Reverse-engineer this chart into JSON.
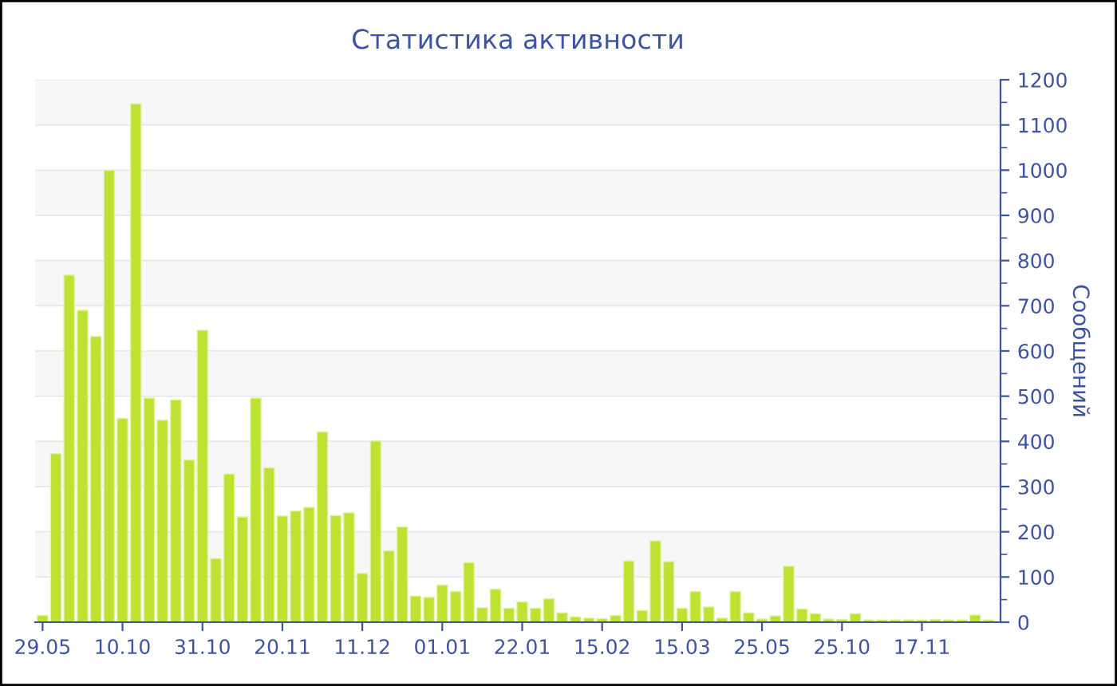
{
  "chart_data": {
    "type": "bar",
    "title": "Статистика активности",
    "ylabel": "Сообщений",
    "categories": [
      "29.05",
      null,
      null,
      null,
      null,
      null,
      "10.10",
      null,
      null,
      null,
      null,
      null,
      "31.10",
      null,
      null,
      null,
      null,
      null,
      "20.11",
      null,
      null,
      null,
      null,
      null,
      "11.12",
      null,
      null,
      null,
      null,
      null,
      "01.01",
      null,
      null,
      null,
      null,
      null,
      "22.01",
      null,
      null,
      null,
      null,
      null,
      "15.02",
      null,
      null,
      null,
      null,
      null,
      "15.03",
      null,
      null,
      null,
      null,
      null,
      "25.05",
      null,
      null,
      null,
      null,
      null,
      "25.10",
      null,
      null,
      null,
      null,
      null,
      "17.11",
      null,
      null,
      null,
      null,
      null
    ],
    "values": [
      15,
      373,
      768,
      690,
      632,
      1000,
      451,
      1147,
      496,
      447,
      492,
      359,
      646,
      141,
      328,
      233,
      496,
      342,
      235,
      246,
      254,
      421,
      236,
      242,
      108,
      401,
      158,
      211,
      58,
      55,
      82,
      68,
      132,
      32,
      73,
      31,
      45,
      31,
      52,
      21,
      12,
      9,
      8,
      15,
      136,
      26,
      180,
      134,
      31,
      68,
      34,
      9,
      68,
      21,
      7,
      14,
      124,
      29,
      19,
      7,
      6,
      19,
      5,
      5,
      5,
      5,
      5,
      6,
      5,
      5,
      16,
      5
    ],
    "color": "#bde232",
    "ylim": [
      0,
      1200
    ],
    "yticks": [
      0,
      100,
      200,
      300,
      400,
      500,
      600,
      700,
      800,
      900,
      1000,
      1100,
      1200
    ],
    "grid": "y"
  }
}
